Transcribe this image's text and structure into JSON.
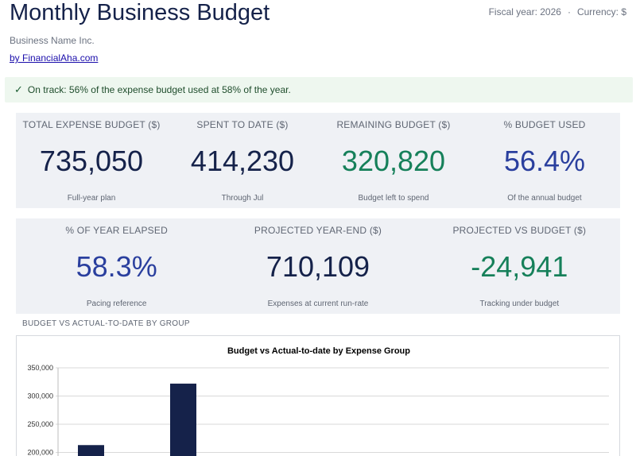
{
  "header": {
    "title": "Monthly Business Budget",
    "fiscal_year": "Fiscal year: 2026",
    "separator": "·",
    "currency": "Currency: $",
    "business_name": "Business Name Inc.",
    "by_link": "by FinancialAha.com"
  },
  "banner": {
    "check": "✓",
    "text": "On track: 56% of the expense budget used at 58% of the year."
  },
  "kpis_row1": [
    {
      "label": "TOTAL EXPENSE BUDGET ($)",
      "value": "735,050",
      "sub": "Full-year plan",
      "color": "#15224a"
    },
    {
      "label": "SPENT TO DATE ($)",
      "value": "414,230",
      "sub": "Through Jul",
      "color": "#15224a"
    },
    {
      "label": "REMAINING BUDGET ($)",
      "value": "320,820",
      "sub": "Budget left to spend",
      "color": "#16805a"
    },
    {
      "label": "% BUDGET USED",
      "value": "56.4%",
      "sub": "Of the annual budget",
      "color": "#2a3f9e"
    }
  ],
  "kpis_row2": [
    {
      "label": "% OF YEAR ELAPSED",
      "value": "58.3%",
      "sub": "Pacing reference",
      "color": "#2a3f9e"
    },
    {
      "label": "PROJECTED YEAR-END ($)",
      "value": "710,109",
      "sub": "Expenses at current run-rate",
      "color": "#15224a"
    },
    {
      "label": "PROJECTED VS BUDGET ($)",
      "value": "-24,941",
      "sub": "Tracking under budget",
      "color": "#16805a"
    }
  ],
  "section": {
    "chart_heading": "BUDGET VS ACTUAL-TO-DATE BY GROUP"
  },
  "chart_data": {
    "type": "bar",
    "title": "Budget vs Actual-to-date by Expense Group",
    "xlabel": "",
    "ylabel": "",
    "ylim": [
      200000,
      350000
    ],
    "yticks": [
      200000,
      250000,
      300000,
      350000
    ],
    "ytick_labels": [
      "200,000",
      "250,000",
      "300,000",
      "350,000"
    ],
    "grid": true,
    "bar_color": "#15224a",
    "series": [
      {
        "values": [
          213000,
          322000
        ]
      }
    ]
  }
}
